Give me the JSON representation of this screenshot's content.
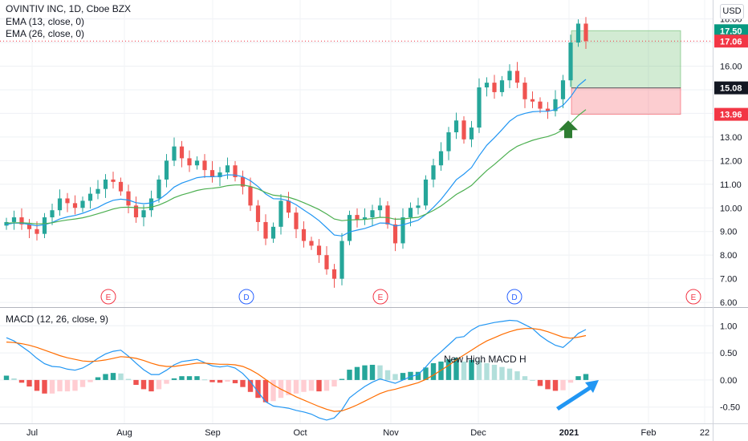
{
  "header": {
    "title": "OVINTIV INC, 1D, Cboe BZX",
    "ema1": "EMA (13, close, 0)",
    "ema2": "EMA (26, close, 0)",
    "currency": "USD"
  },
  "chart_data": [
    {
      "type": "candlestick",
      "title": "OVINTIV INC, 1D, Cboe BZX",
      "ylim": [
        5.8,
        18.8
      ],
      "y_ticks": [
        "18.00",
        "17.00",
        "16.00",
        "15.00",
        "14.00",
        "13.00",
        "12.00",
        "11.00",
        "10.00",
        "9.00",
        "8.00",
        "7.00",
        "6.00"
      ],
      "x_ticks": [
        "Jul",
        "Aug",
        "Sep",
        "Oct",
        "Nov",
        "Dec",
        "2021",
        "Feb",
        "22"
      ],
      "price_labels": [
        {
          "value": 17.5,
          "text": "17.50",
          "color": "#089981"
        },
        {
          "value": 17.06,
          "text": "17.06",
          "color": "#f23645"
        },
        {
          "value": 15.08,
          "text": "15.08",
          "color": "#131722"
        },
        {
          "value": 13.96,
          "text": "13.96",
          "color": "#f23645"
        }
      ],
      "current_price": 17.06,
      "position": {
        "entry": 15.08,
        "target": 17.5,
        "stop": 13.96
      },
      "events": [
        {
          "letter": "E",
          "color": "#f23645"
        },
        {
          "letter": "D",
          "color": "#2962ff"
        },
        {
          "letter": "E",
          "color": "#f23645"
        },
        {
          "letter": "D",
          "color": "#2962ff"
        },
        {
          "letter": "E",
          "color": "#f23645"
        }
      ],
      "close_path": [
        9.4,
        9.6,
        9.3,
        9.1,
        8.9,
        9.6,
        9.9,
        10.4,
        10.2,
        10.0,
        10.3,
        10.6,
        10.8,
        11.2,
        11.1,
        10.7,
        10.1,
        9.6,
        9.9,
        10.4,
        11.2,
        12.0,
        12.6,
        12.1,
        11.8,
        12.0,
        11.6,
        11.3,
        11.5,
        11.8,
        11.3,
        10.9,
        10.1,
        9.4,
        8.7,
        9.2,
        10.3,
        9.8,
        9.1,
        8.6,
        8.4,
        8.0,
        7.4,
        7.0,
        8.6,
        9.7,
        9.5,
        9.6,
        9.9,
        10.1,
        9.3,
        8.5,
        9.6,
        10.0,
        10.1,
        11.2,
        11.8,
        12.4,
        13.2,
        13.7,
        12.9,
        13.4,
        15.1,
        15.3,
        14.9,
        15.4,
        15.8,
        15.3,
        14.6,
        14.5,
        14.2,
        14.1,
        14.6,
        15.4,
        17.0,
        17.8,
        17.06
      ],
      "ema13": [
        9.3,
        9.36,
        9.35,
        9.3,
        9.24,
        9.29,
        9.38,
        9.53,
        9.62,
        9.68,
        9.77,
        9.89,
        10.02,
        10.19,
        10.32,
        10.37,
        10.33,
        10.22,
        10.18,
        10.21,
        10.35,
        10.59,
        10.88,
        11.05,
        11.16,
        11.28,
        11.32,
        11.32,
        11.34,
        11.4,
        11.39,
        11.32,
        11.15,
        10.9,
        10.59,
        10.39,
        10.38,
        10.3,
        10.13,
        9.91,
        9.7,
        9.46,
        9.16,
        8.85,
        8.81,
        8.98,
        9.06,
        9.13,
        9.24,
        9.36,
        9.35,
        9.23,
        9.28,
        9.38,
        9.48,
        9.72,
        10.02,
        10.36,
        10.77,
        11.19,
        11.43,
        11.71,
        12.21,
        12.65,
        12.97,
        13.31,
        13.67,
        13.9,
        14.0,
        14.07,
        14.09,
        14.09,
        14.16,
        14.34,
        14.7,
        15.17,
        15.44
      ],
      "ema26": [
        9.35,
        9.37,
        9.37,
        9.35,
        9.32,
        9.33,
        9.37,
        9.44,
        9.49,
        9.53,
        9.58,
        9.66,
        9.75,
        9.85,
        9.95,
        10.02,
        10.03,
        10.01,
        10.0,
        10.03,
        10.12,
        10.26,
        10.43,
        10.55,
        10.64,
        10.74,
        10.8,
        10.83,
        10.87,
        10.94,
        10.97,
        10.97,
        10.91,
        10.8,
        10.65,
        10.54,
        10.5,
        10.45,
        10.35,
        10.22,
        10.08,
        9.93,
        9.74,
        9.53,
        9.46,
        9.49,
        9.5,
        9.51,
        9.55,
        9.6,
        9.59,
        9.52,
        9.53,
        9.57,
        9.6,
        9.73,
        9.89,
        10.08,
        10.32,
        10.57,
        10.75,
        10.95,
        11.27,
        11.58,
        11.84,
        12.12,
        12.4,
        12.61,
        12.74,
        12.86,
        12.95,
        13.02,
        13.13,
        13.31,
        13.59,
        13.91,
        14.16
      ]
    },
    {
      "type": "line",
      "title": "MACD (12, 26, close, 9)",
      "ylim": [
        -0.8,
        1.3
      ],
      "y_ticks": [
        "1.00",
        "0.50",
        "0.00",
        "-0.50"
      ],
      "annotation": "New High MACD H",
      "macd": [
        0.78,
        0.72,
        0.62,
        0.52,
        0.4,
        0.3,
        0.25,
        0.24,
        0.2,
        0.18,
        0.22,
        0.3,
        0.4,
        0.48,
        0.53,
        0.55,
        0.44,
        0.31,
        0.19,
        0.1,
        0.1,
        0.18,
        0.28,
        0.34,
        0.36,
        0.38,
        0.32,
        0.26,
        0.24,
        0.26,
        0.22,
        0.12,
        -0.03,
        -0.22,
        -0.4,
        -0.48,
        -0.5,
        -0.52,
        -0.56,
        -0.59,
        -0.63,
        -0.7,
        -0.74,
        -0.7,
        -0.55,
        -0.33,
        -0.22,
        -0.12,
        -0.04,
        0.02,
        -0.02,
        -0.06,
        0.0,
        0.06,
        0.1,
        0.24,
        0.4,
        0.52,
        0.65,
        0.78,
        0.8,
        0.92,
        1.0,
        1.03,
        1.06,
        1.08,
        1.1,
        1.09,
        1.02,
        0.95,
        0.82,
        0.72,
        0.64,
        0.6,
        0.72,
        0.86,
        0.93
      ],
      "signal": [
        0.7,
        0.69,
        0.67,
        0.64,
        0.6,
        0.55,
        0.5,
        0.45,
        0.41,
        0.38,
        0.35,
        0.34,
        0.35,
        0.37,
        0.4,
        0.43,
        0.42,
        0.4,
        0.36,
        0.31,
        0.27,
        0.25,
        0.25,
        0.27,
        0.29,
        0.31,
        0.31,
        0.3,
        0.29,
        0.29,
        0.28,
        0.25,
        0.19,
        0.11,
        0.01,
        -0.09,
        -0.17,
        -0.24,
        -0.31,
        -0.37,
        -0.43,
        -0.49,
        -0.54,
        -0.58,
        -0.57,
        -0.52,
        -0.46,
        -0.39,
        -0.32,
        -0.25,
        -0.2,
        -0.17,
        -0.13,
        -0.09,
        -0.05,
        0.01,
        0.09,
        0.18,
        0.27,
        0.37,
        0.46,
        0.55,
        0.64,
        0.72,
        0.78,
        0.84,
        0.89,
        0.93,
        0.95,
        0.95,
        0.93,
        0.89,
        0.84,
        0.79,
        0.77,
        0.79,
        0.82
      ]
    }
  ]
}
